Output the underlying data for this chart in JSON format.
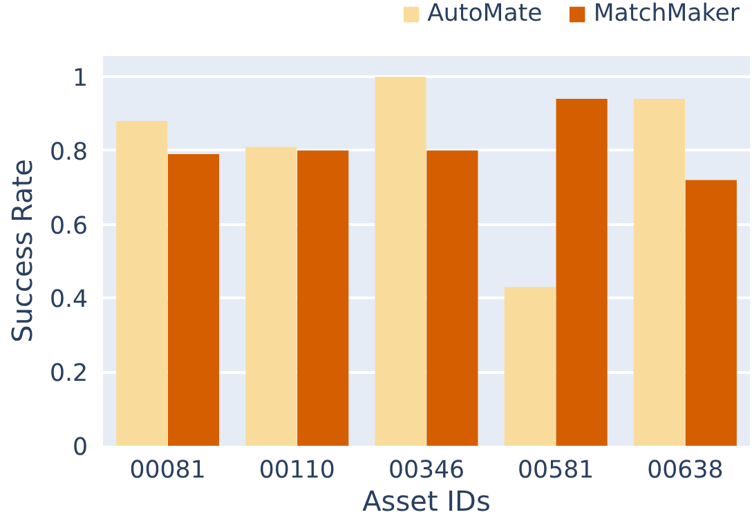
{
  "chart_data": {
    "type": "bar",
    "xlabel": "Asset IDs",
    "ylabel": "Success Rate",
    "categories": [
      "00081",
      "00110",
      "00346",
      "00581",
      "00638"
    ],
    "series": [
      {
        "name": "AutoMate",
        "color": "#f9dc9b",
        "values": [
          0.88,
          0.81,
          1.0,
          0.43,
          0.94
        ]
      },
      {
        "name": "MatchMaker",
        "color": "#d55e00",
        "values": [
          0.79,
          0.8,
          0.8,
          0.94,
          0.72
        ]
      }
    ],
    "ylim": [
      0,
      1.056
    ],
    "yticks": [
      0,
      0.2,
      0.4,
      0.6,
      0.8,
      1
    ],
    "grid": "y",
    "legend": "top right"
  }
}
